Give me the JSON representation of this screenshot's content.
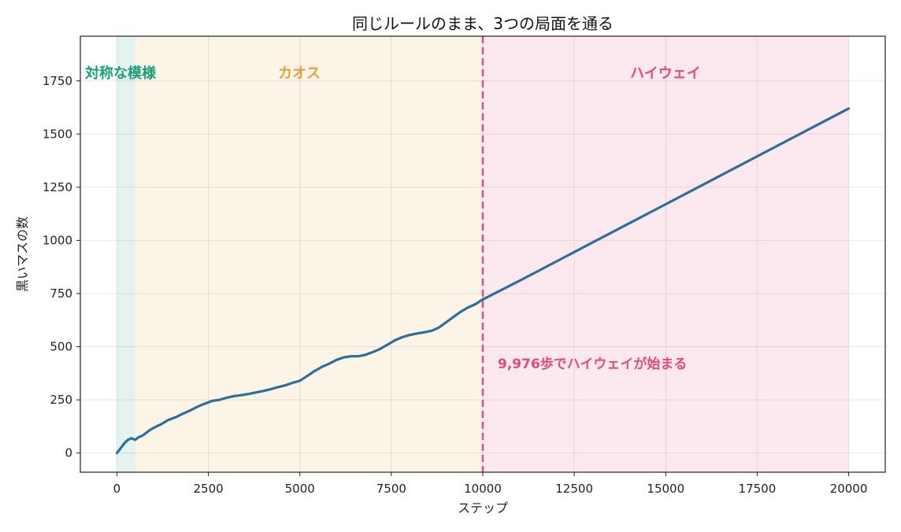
{
  "chart_data": {
    "type": "line",
    "title": "同じルールのまま、3つの局面を通る",
    "xlabel": "ステップ",
    "ylabel": "黒いマスの数",
    "xlim": [
      -1000,
      21000
    ],
    "ylim": [
      -90,
      1960
    ],
    "xticks": [
      0,
      2500,
      5000,
      7500,
      10000,
      12500,
      15000,
      17500,
      20000
    ],
    "xtick_labels": [
      "0",
      "2500",
      "5000",
      "7500",
      "10000",
      "12500",
      "15000",
      "17500",
      "20000"
    ],
    "yticks": [
      0,
      250,
      500,
      750,
      1000,
      1250,
      1500,
      1750
    ],
    "ytick_labels": [
      "0",
      "250",
      "500",
      "750",
      "1000",
      "1250",
      "1500",
      "1750"
    ],
    "grid": true,
    "line_color": "#2f6e9b",
    "series": [
      {
        "x": [
          0,
          100,
          200,
          300,
          400,
          500,
          600,
          700,
          800,
          900,
          1000,
          1200,
          1400,
          1600,
          1800,
          2000,
          2200,
          2400,
          2600,
          2800,
          3000,
          3200,
          3400,
          3600,
          3800,
          4000,
          4200,
          4400,
          4600,
          4800,
          5000,
          5200,
          5400,
          5600,
          5800,
          6000,
          6200,
          6400,
          6600,
          6800,
          7000,
          7200,
          7400,
          7600,
          7800,
          8000,
          8200,
          8400,
          8600,
          8800,
          9000,
          9200,
          9400,
          9600,
          9800,
          9976,
          11000,
          12000,
          13000,
          14000,
          15000,
          16000,
          17000,
          18000,
          19000,
          20000
        ],
        "y": [
          0,
          22,
          45,
          62,
          70,
          62,
          75,
          82,
          95,
          108,
          118,
          135,
          155,
          168,
          185,
          200,
          218,
          232,
          245,
          250,
          260,
          268,
          272,
          278,
          285,
          292,
          300,
          310,
          318,
          330,
          340,
          362,
          385,
          405,
          420,
          438,
          450,
          455,
          455,
          462,
          475,
          490,
          510,
          530,
          545,
          555,
          562,
          568,
          575,
          590,
          615,
          640,
          665,
          685,
          700,
          720,
          810,
          900,
          990,
          1080,
          1170,
          1260,
          1350,
          1440,
          1530,
          1620
        ]
      }
    ],
    "phases": [
      {
        "label": "対称な模様",
        "x_start": 0,
        "x_end": 500,
        "color": "#1a9e7a"
      },
      {
        "label": "カオス",
        "x_start": 500,
        "x_end": 10000,
        "color": "#e0a23a"
      },
      {
        "label": "ハイウェイ",
        "x_start": 10000,
        "x_end": 20000,
        "color": "#e34b7a"
      }
    ],
    "annotation": {
      "text": "9,976歩でハイウェイが始まる",
      "x": 9976,
      "color": "#e34b7a"
    }
  }
}
